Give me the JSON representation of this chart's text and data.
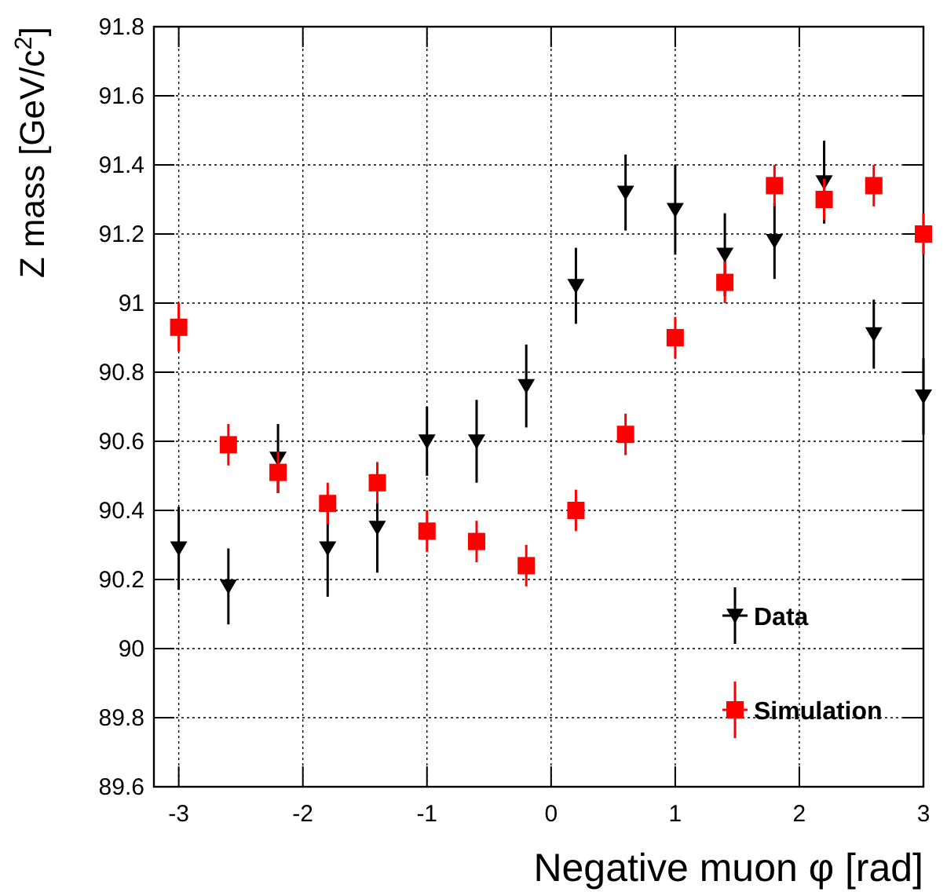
{
  "chart_data": {
    "type": "scatter",
    "xlabel": "Negative muon φ [rad]",
    "ylabel": "Z mass [GeV/c$^{2}$]",
    "x": [
      -3,
      -2.6,
      -2.2,
      -1.8,
      -1.4,
      -1,
      -0.6,
      -0.2,
      0.2,
      0.6,
      1,
      1.4,
      1.8,
      2.2,
      2.6,
      3
    ],
    "series": [
      {
        "name": "Data",
        "color": "#000000",
        "marker": "triangle",
        "values": [
          90.29,
          90.18,
          90.55,
          90.29,
          90.35,
          90.6,
          90.6,
          90.76,
          91.05,
          91.32,
          91.27,
          91.14,
          91.18,
          91.35,
          90.91,
          90.73
        ],
        "errors": [
          0.12,
          0.11,
          0.1,
          0.14,
          0.13,
          0.1,
          0.12,
          0.12,
          0.11,
          0.11,
          0.13,
          0.12,
          0.11,
          0.12,
          0.1,
          0.11
        ]
      },
      {
        "name": "Simulation",
        "color": "#ff0000",
        "marker": "square",
        "values": [
          90.93,
          90.59,
          90.51,
          90.42,
          90.48,
          90.34,
          90.31,
          90.24,
          90.4,
          90.62,
          90.9,
          91.06,
          91.34,
          91.3,
          91.34,
          91.2
        ],
        "errors": [
          0.07,
          0.06,
          0.06,
          0.06,
          0.06,
          0.06,
          0.06,
          0.06,
          0.06,
          0.06,
          0.06,
          0.06,
          0.06,
          0.06,
          0.06,
          0.06
        ]
      }
    ],
    "xlim": [
      -3.2,
      3
    ],
    "xticks": [
      -3,
      -2,
      -1,
      0,
      1,
      2,
      3
    ],
    "ylim": [
      89.6,
      91.8
    ],
    "yticks": [
      89.6,
      89.8,
      90,
      90.2,
      90.4,
      90.6,
      90.8,
      91,
      91.2,
      91.4,
      91.6,
      91.8
    ],
    "grid": true,
    "legend": "bottom right"
  }
}
